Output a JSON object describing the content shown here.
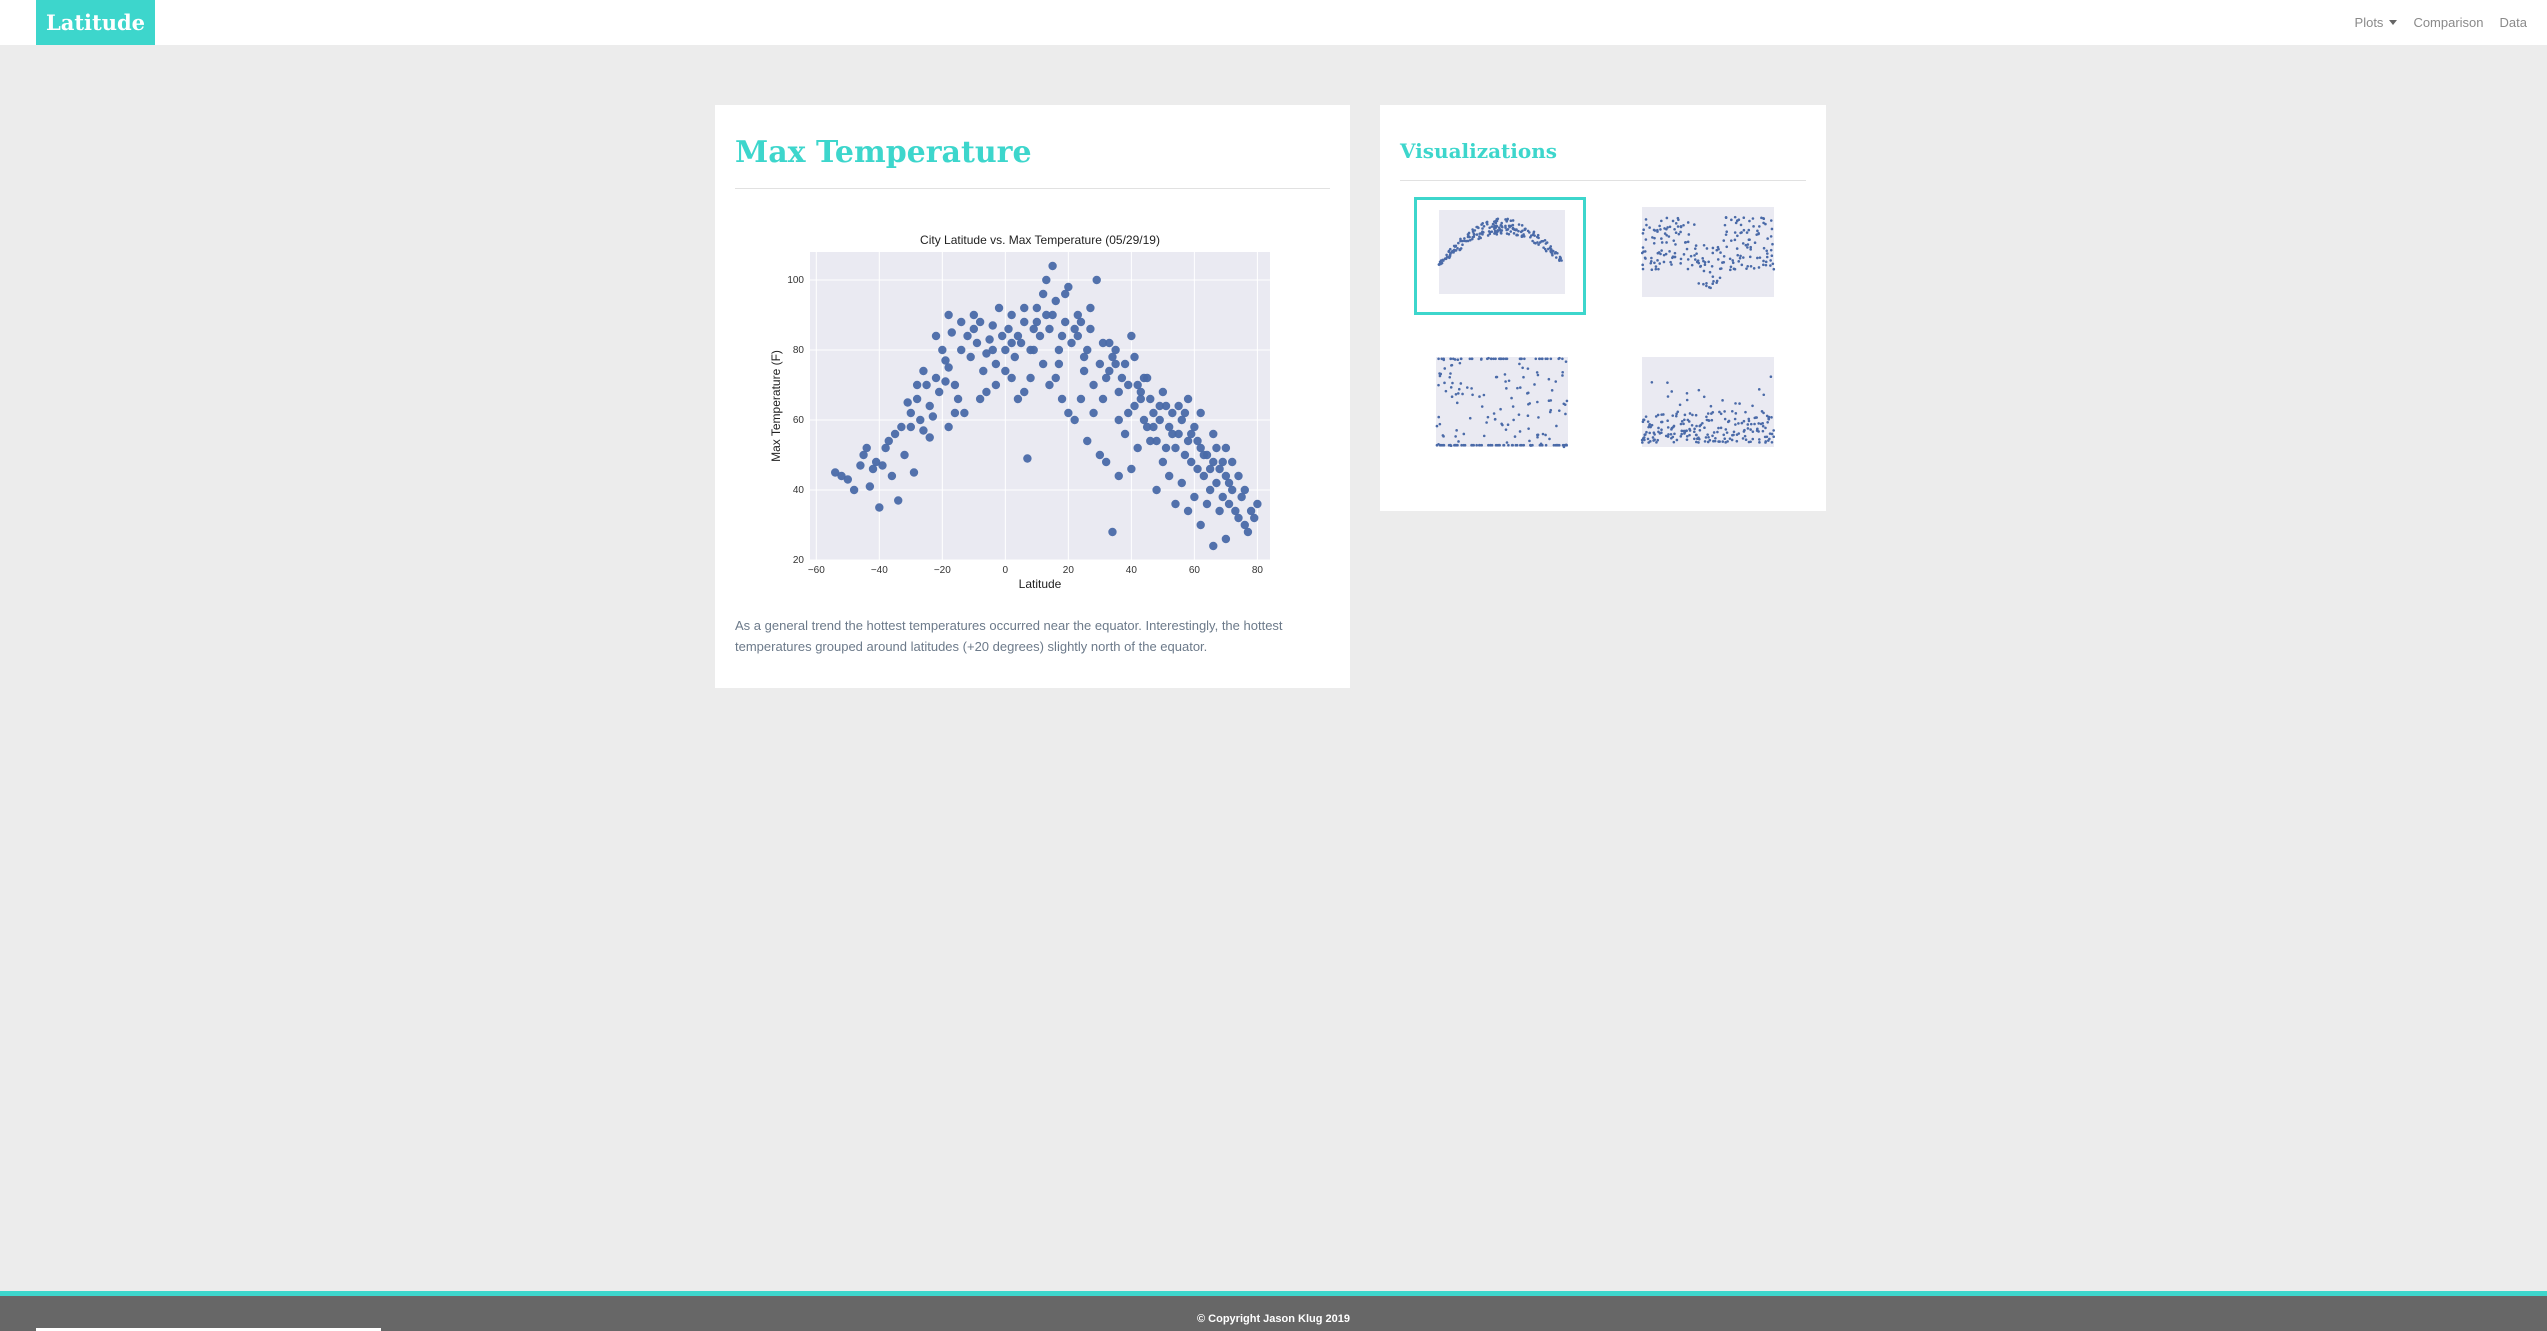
{
  "navbar": {
    "brand": "Latitude",
    "links": [
      {
        "label": "Plots",
        "dropdown": true
      },
      {
        "label": "Comparison"
      },
      {
        "label": "Data"
      }
    ]
  },
  "main": {
    "title": "Max Temperature",
    "caption": "As a general trend the hottest temperatures occurred near the equator. Interestingly, the hottest temperatures grouped around latitudes (+20 degrees) slightly north of the equator."
  },
  "visualizations": {
    "title": "Visualizations",
    "active_index": 0,
    "thumbnails": [
      {
        "name": "max-temperature-thumbnail",
        "kind": "temp"
      },
      {
        "name": "humidity-thumbnail",
        "kind": "humidity"
      },
      {
        "name": "cloudiness-thumbnail",
        "kind": "cloud"
      },
      {
        "name": "wind-speed-thumbnail",
        "kind": "wind"
      }
    ]
  },
  "footer": {
    "text": "© Copyright Jason Klug 2019"
  },
  "colors": {
    "accent": "#3dd6cc",
    "point": "#4a6aa8",
    "plot_bg": "#eaeaf2"
  },
  "chart_data": {
    "type": "scatter",
    "title": "City Latitude vs. Max Temperature (05/29/19)",
    "xlabel": "Latitude",
    "ylabel": "Max Temperature (F)",
    "xlim": [
      -62,
      84
    ],
    "ylim": [
      20,
      108
    ],
    "xticks": [
      -60,
      -40,
      -20,
      0,
      20,
      40,
      60,
      80
    ],
    "yticks": [
      20,
      40,
      60,
      80,
      100
    ],
    "grid": true,
    "points": [
      [
        -54,
        45
      ],
      [
        -52,
        44
      ],
      [
        -50,
        43
      ],
      [
        -46,
        47
      ],
      [
        -45,
        50
      ],
      [
        -44,
        52
      ],
      [
        -41,
        48
      ],
      [
        -40,
        35
      ],
      [
        -39,
        47
      ],
      [
        -37,
        54
      ],
      [
        -35,
        56
      ],
      [
        -33,
        58
      ],
      [
        -31,
        65
      ],
      [
        -30,
        62
      ],
      [
        -28,
        66
      ],
      [
        -27,
        60
      ],
      [
        -25,
        70
      ],
      [
        -24,
        64
      ],
      [
        -22,
        72
      ],
      [
        -21,
        68
      ],
      [
        -20,
        80
      ],
      [
        -19,
        77
      ],
      [
        -18,
        75
      ],
      [
        -17,
        85
      ],
      [
        -16,
        70
      ],
      [
        -15,
        66
      ],
      [
        -14,
        80
      ],
      [
        -12,
        84
      ],
      [
        -11,
        78
      ],
      [
        -10,
        90
      ],
      [
        -9,
        82
      ],
      [
        -8,
        88
      ],
      [
        -7,
        74
      ],
      [
        -6,
        79
      ],
      [
        -5,
        83
      ],
      [
        -4,
        87
      ],
      [
        -3,
        76
      ],
      [
        -2,
        92
      ],
      [
        -1,
        84
      ],
      [
        0,
        80
      ],
      [
        1,
        86
      ],
      [
        2,
        90
      ],
      [
        3,
        78
      ],
      [
        4,
        84
      ],
      [
        5,
        82
      ],
      [
        6,
        88
      ],
      [
        7,
        49
      ],
      [
        8,
        80
      ],
      [
        9,
        86
      ],
      [
        10,
        92
      ],
      [
        11,
        84
      ],
      [
        12,
        96
      ],
      [
        13,
        100
      ],
      [
        14,
        86
      ],
      [
        15,
        90
      ],
      [
        16,
        94
      ],
      [
        17,
        80
      ],
      [
        18,
        84
      ],
      [
        19,
        88
      ],
      [
        20,
        98
      ],
      [
        21,
        82
      ],
      [
        22,
        86
      ],
      [
        23,
        84
      ],
      [
        24,
        88
      ],
      [
        25,
        74
      ],
      [
        26,
        80
      ],
      [
        27,
        92
      ],
      [
        28,
        70
      ],
      [
        29,
        100
      ],
      [
        30,
        76
      ],
      [
        31,
        66
      ],
      [
        32,
        72
      ],
      [
        33,
        74
      ],
      [
        34,
        78
      ],
      [
        35,
        80
      ],
      [
        36,
        68
      ],
      [
        37,
        72
      ],
      [
        38,
        76
      ],
      [
        39,
        62
      ],
      [
        40,
        84
      ],
      [
        41,
        64
      ],
      [
        42,
        70
      ],
      [
        43,
        68
      ],
      [
        44,
        72
      ],
      [
        45,
        58
      ],
      [
        46,
        66
      ],
      [
        47,
        62
      ],
      [
        48,
        54
      ],
      [
        49,
        60
      ],
      [
        50,
        68
      ],
      [
        51,
        64
      ],
      [
        52,
        58
      ],
      [
        53,
        62
      ],
      [
        54,
        52
      ],
      [
        55,
        56
      ],
      [
        56,
        60
      ],
      [
        57,
        50
      ],
      [
        58,
        54
      ],
      [
        59,
        48
      ],
      [
        60,
        58
      ],
      [
        61,
        46
      ],
      [
        62,
        52
      ],
      [
        63,
        44
      ],
      [
        64,
        50
      ],
      [
        65,
        40
      ],
      [
        66,
        48
      ],
      [
        67,
        42
      ],
      [
        68,
        46
      ],
      [
        69,
        38
      ],
      [
        70,
        44
      ],
      [
        71,
        36
      ],
      [
        72,
        40
      ],
      [
        73,
        34
      ],
      [
        74,
        32
      ],
      [
        75,
        38
      ],
      [
        76,
        30
      ],
      [
        77,
        28
      ],
      [
        78,
        34
      ],
      [
        79,
        32
      ],
      [
        80,
        36
      ],
      [
        -43,
        41
      ],
      [
        -36,
        44
      ],
      [
        -34,
        37
      ],
      [
        -29,
        45
      ],
      [
        -26,
        57
      ],
      [
        -23,
        61
      ],
      [
        -18,
        58
      ],
      [
        -13,
        62
      ],
      [
        -8,
        66
      ],
      [
        -3,
        70
      ],
      [
        0,
        74
      ],
      [
        4,
        66
      ],
      [
        8,
        72
      ],
      [
        12,
        76
      ],
      [
        16,
        72
      ],
      [
        18,
        66
      ],
      [
        22,
        60
      ],
      [
        26,
        54
      ],
      [
        28,
        62
      ],
      [
        30,
        50
      ],
      [
        32,
        48
      ],
      [
        34,
        28
      ],
      [
        36,
        44
      ],
      [
        38,
        56
      ],
      [
        40,
        46
      ],
      [
        42,
        52
      ],
      [
        44,
        60
      ],
      [
        46,
        54
      ],
      [
        48,
        40
      ],
      [
        50,
        48
      ],
      [
        52,
        44
      ],
      [
        54,
        36
      ],
      [
        56,
        42
      ],
      [
        58,
        34
      ],
      [
        60,
        38
      ],
      [
        62,
        30
      ],
      [
        64,
        36
      ],
      [
        66,
        24
      ],
      [
        68,
        34
      ],
      [
        70,
        26
      ],
      [
        -32,
        50
      ],
      [
        -24,
        55
      ],
      [
        -16,
        62
      ],
      [
        -6,
        68
      ],
      [
        2,
        72
      ],
      [
        6,
        68
      ],
      [
        14,
        70
      ],
      [
        20,
        62
      ],
      [
        24,
        66
      ],
      [
        36,
        60
      ],
      [
        58,
        66
      ],
      [
        62,
        62
      ],
      [
        66,
        56
      ],
      [
        70,
        52
      ],
      [
        72,
        48
      ],
      [
        74,
        44
      ],
      [
        76,
        40
      ],
      [
        55,
        64
      ],
      [
        45,
        72
      ],
      [
        41,
        78
      ],
      [
        33,
        82
      ],
      [
        27,
        86
      ],
      [
        23,
        90
      ],
      [
        19,
        96
      ],
      [
        15,
        104
      ],
      [
        10,
        88
      ],
      [
        6,
        92
      ],
      [
        2,
        82
      ],
      [
        -4,
        80
      ],
      [
        -10,
        86
      ],
      [
        -14,
        88
      ],
      [
        -18,
        90
      ],
      [
        -22,
        84
      ],
      [
        -26,
        74
      ],
      [
        -30,
        58
      ],
      [
        -38,
        52
      ],
      [
        -48,
        40
      ],
      [
        -42,
        46
      ],
      [
        -28,
        70
      ],
      [
        -19,
        71
      ],
      [
        47,
        58
      ],
      [
        51,
        52
      ],
      [
        53,
        56
      ],
      [
        57,
        62
      ],
      [
        59,
        56
      ],
      [
        63,
        50
      ],
      [
        65,
        46
      ],
      [
        67,
        52
      ],
      [
        69,
        48
      ],
      [
        71,
        42
      ],
      [
        61,
        54
      ],
      [
        49,
        64
      ],
      [
        43,
        66
      ],
      [
        39,
        70
      ],
      [
        35,
        76
      ],
      [
        31,
        82
      ],
      [
        25,
        78
      ],
      [
        17,
        76
      ],
      [
        13,
        90
      ],
      [
        9,
        80
      ]
    ]
  }
}
